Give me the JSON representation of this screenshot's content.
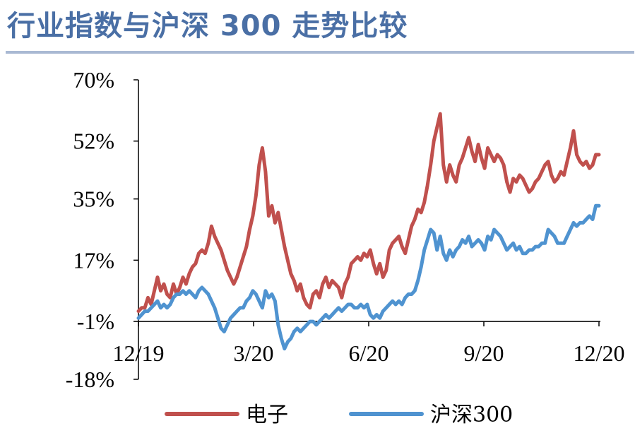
{
  "title": "行业指数与沪深 300 走势比较",
  "chart_data": {
    "type": "line",
    "title": "行业指数与沪深 300 走势比较",
    "xlabel": "",
    "ylabel": "",
    "ylim": [
      -18,
      70
    ],
    "yticks": [
      70,
      52,
      35,
      17,
      -1,
      -18
    ],
    "ytick_labels": [
      "70%",
      "52%",
      "35%",
      "17%",
      "-1%",
      "-18%"
    ],
    "xticks": [
      "12/19",
      "3/20",
      "6/20",
      "9/20",
      "12/20"
    ],
    "legend": "bottom",
    "grid": false,
    "colors": {
      "电子": "#c0504d",
      "沪深300": "#4f93d0"
    },
    "series": [
      {
        "name": "电子",
        "values": [
          [
            0,
            2
          ],
          [
            2,
            3
          ],
          [
            4,
            3
          ],
          [
            6,
            6
          ],
          [
            8,
            4
          ],
          [
            10,
            8
          ],
          [
            12,
            12
          ],
          [
            14,
            8
          ],
          [
            16,
            10
          ],
          [
            18,
            7
          ],
          [
            20,
            6
          ],
          [
            22,
            10
          ],
          [
            24,
            7
          ],
          [
            26,
            9
          ],
          [
            28,
            12
          ],
          [
            30,
            10
          ],
          [
            32,
            13
          ],
          [
            34,
            15
          ],
          [
            36,
            16
          ],
          [
            38,
            19
          ],
          [
            40,
            20
          ],
          [
            42,
            19
          ],
          [
            44,
            22
          ],
          [
            46,
            27
          ],
          [
            48,
            24
          ],
          [
            50,
            22
          ],
          [
            52,
            20
          ],
          [
            54,
            17
          ],
          [
            56,
            14
          ],
          [
            58,
            12
          ],
          [
            60,
            10
          ],
          [
            62,
            12
          ],
          [
            64,
            15
          ],
          [
            66,
            18
          ],
          [
            68,
            21
          ],
          [
            70,
            26
          ],
          [
            72,
            30
          ],
          [
            74,
            36
          ],
          [
            76,
            45
          ],
          [
            78,
            50
          ],
          [
            80,
            43
          ],
          [
            82,
            30
          ],
          [
            84,
            33
          ],
          [
            86,
            28
          ],
          [
            88,
            31
          ],
          [
            90,
            26
          ],
          [
            92,
            21
          ],
          [
            94,
            17
          ],
          [
            96,
            13
          ],
          [
            98,
            11
          ],
          [
            100,
            8
          ],
          [
            102,
            10
          ],
          [
            104,
            6
          ],
          [
            106,
            4
          ],
          [
            108,
            3
          ],
          [
            110,
            7
          ],
          [
            112,
            8
          ],
          [
            114,
            6
          ],
          [
            116,
            10
          ],
          [
            118,
            12
          ],
          [
            120,
            9
          ],
          [
            122,
            11
          ],
          [
            124,
            10
          ],
          [
            126,
            9
          ],
          [
            128,
            6
          ],
          [
            130,
            10
          ],
          [
            132,
            12
          ],
          [
            134,
            16
          ],
          [
            136,
            17
          ],
          [
            138,
            18
          ],
          [
            140,
            17
          ],
          [
            142,
            19
          ],
          [
            144,
            18
          ],
          [
            146,
            20
          ],
          [
            148,
            16
          ],
          [
            150,
            13
          ],
          [
            152,
            16
          ],
          [
            154,
            12
          ],
          [
            156,
            14
          ],
          [
            158,
            20
          ],
          [
            160,
            22
          ],
          [
            162,
            23
          ],
          [
            164,
            24
          ],
          [
            166,
            21
          ],
          [
            168,
            19
          ],
          [
            170,
            23
          ],
          [
            172,
            27
          ],
          [
            174,
            29
          ],
          [
            176,
            32
          ],
          [
            178,
            31
          ],
          [
            180,
            34
          ],
          [
            182,
            39
          ],
          [
            184,
            45
          ],
          [
            186,
            52
          ],
          [
            188,
            56
          ],
          [
            190,
            60
          ],
          [
            192,
            45
          ],
          [
            194,
            40
          ],
          [
            196,
            45
          ],
          [
            198,
            42
          ],
          [
            200,
            40
          ],
          [
            202,
            45
          ],
          [
            204,
            47
          ],
          [
            206,
            50
          ],
          [
            208,
            53
          ],
          [
            210,
            49
          ],
          [
            212,
            46
          ],
          [
            214,
            51
          ],
          [
            216,
            47
          ],
          [
            218,
            44
          ],
          [
            220,
            50
          ],
          [
            222,
            48
          ],
          [
            224,
            46
          ],
          [
            226,
            48
          ],
          [
            228,
            47
          ],
          [
            230,
            45
          ],
          [
            232,
            40
          ],
          [
            234,
            37
          ],
          [
            236,
            41
          ],
          [
            238,
            40
          ],
          [
            240,
            42
          ],
          [
            242,
            41
          ],
          [
            244,
            39
          ],
          [
            246,
            37
          ],
          [
            248,
            38
          ],
          [
            250,
            40
          ],
          [
            252,
            41
          ],
          [
            254,
            43
          ],
          [
            256,
            45
          ],
          [
            258,
            46
          ],
          [
            260,
            42
          ],
          [
            262,
            40
          ],
          [
            264,
            41
          ],
          [
            266,
            43
          ],
          [
            268,
            42
          ],
          [
            270,
            46
          ],
          [
            272,
            50
          ],
          [
            274,
            55
          ],
          [
            276,
            48
          ],
          [
            278,
            46
          ],
          [
            280,
            45
          ],
          [
            282,
            46
          ],
          [
            284,
            44
          ],
          [
            286,
            45
          ],
          [
            288,
            48
          ],
          [
            290,
            48
          ]
        ]
      },
      {
        "name": "沪深300",
        "values": [
          [
            0,
            0
          ],
          [
            2,
            1
          ],
          [
            4,
            2
          ],
          [
            6,
            2
          ],
          [
            8,
            3
          ],
          [
            10,
            4
          ],
          [
            12,
            5
          ],
          [
            14,
            3
          ],
          [
            16,
            4
          ],
          [
            18,
            3
          ],
          [
            20,
            4
          ],
          [
            22,
            6
          ],
          [
            24,
            7
          ],
          [
            26,
            7
          ],
          [
            28,
            8
          ],
          [
            30,
            7
          ],
          [
            32,
            8
          ],
          [
            34,
            7
          ],
          [
            36,
            6
          ],
          [
            38,
            8
          ],
          [
            40,
            9
          ],
          [
            42,
            8
          ],
          [
            44,
            7
          ],
          [
            46,
            5
          ],
          [
            48,
            3
          ],
          [
            50,
            0
          ],
          [
            52,
            -3
          ],
          [
            54,
            -4
          ],
          [
            56,
            -2
          ],
          [
            58,
            0
          ],
          [
            60,
            1
          ],
          [
            62,
            2
          ],
          [
            64,
            3
          ],
          [
            66,
            3
          ],
          [
            68,
            5
          ],
          [
            70,
            6
          ],
          [
            72,
            8
          ],
          [
            74,
            7
          ],
          [
            76,
            5
          ],
          [
            78,
            3
          ],
          [
            80,
            8
          ],
          [
            82,
            6
          ],
          [
            84,
            7
          ],
          [
            86,
            5
          ],
          [
            88,
            -2
          ],
          [
            90,
            -6
          ],
          [
            92,
            -9
          ],
          [
            94,
            -7
          ],
          [
            96,
            -6
          ],
          [
            98,
            -4
          ],
          [
            100,
            -3
          ],
          [
            102,
            -4
          ],
          [
            104,
            -3
          ],
          [
            106,
            -2
          ],
          [
            108,
            -1
          ],
          [
            110,
            -1
          ],
          [
            112,
            -2
          ],
          [
            114,
            -1
          ],
          [
            116,
            0
          ],
          [
            118,
            1
          ],
          [
            120,
            0
          ],
          [
            122,
            1
          ],
          [
            124,
            2
          ],
          [
            126,
            3
          ],
          [
            128,
            2
          ],
          [
            130,
            3
          ],
          [
            132,
            4
          ],
          [
            134,
            4
          ],
          [
            136,
            3
          ],
          [
            138,
            3
          ],
          [
            140,
            4
          ],
          [
            142,
            3
          ],
          [
            144,
            4
          ],
          [
            146,
            1
          ],
          [
            148,
            0
          ],
          [
            150,
            1
          ],
          [
            152,
            0
          ],
          [
            154,
            2
          ],
          [
            156,
            3
          ],
          [
            158,
            4
          ],
          [
            160,
            5
          ],
          [
            162,
            4
          ],
          [
            164,
            5
          ],
          [
            166,
            4
          ],
          [
            168,
            6
          ],
          [
            170,
            7
          ],
          [
            172,
            7
          ],
          [
            174,
            8
          ],
          [
            176,
            11
          ],
          [
            178,
            15
          ],
          [
            180,
            20
          ],
          [
            182,
            23
          ],
          [
            184,
            26
          ],
          [
            186,
            25
          ],
          [
            188,
            20
          ],
          [
            190,
            24
          ],
          [
            192,
            19
          ],
          [
            194,
            17
          ],
          [
            196,
            20
          ],
          [
            198,
            18
          ],
          [
            200,
            20
          ],
          [
            202,
            21
          ],
          [
            204,
            23
          ],
          [
            206,
            22
          ],
          [
            208,
            24
          ],
          [
            210,
            21
          ],
          [
            212,
            22
          ],
          [
            214,
            23
          ],
          [
            216,
            22
          ],
          [
            218,
            20
          ],
          [
            220,
            24
          ],
          [
            222,
            23
          ],
          [
            224,
            26
          ],
          [
            226,
            25
          ],
          [
            228,
            24
          ],
          [
            230,
            22
          ],
          [
            232,
            20
          ],
          [
            234,
            21
          ],
          [
            236,
            22
          ],
          [
            238,
            20
          ],
          [
            240,
            21
          ],
          [
            242,
            19
          ],
          [
            244,
            19
          ],
          [
            246,
            20
          ],
          [
            248,
            20
          ],
          [
            250,
            21
          ],
          [
            252,
            21
          ],
          [
            254,
            22
          ],
          [
            256,
            22
          ],
          [
            258,
            26
          ],
          [
            260,
            25
          ],
          [
            262,
            24
          ],
          [
            264,
            22
          ],
          [
            266,
            22
          ],
          [
            268,
            22
          ],
          [
            270,
            24
          ],
          [
            272,
            26
          ],
          [
            274,
            28
          ],
          [
            276,
            27
          ],
          [
            278,
            28
          ],
          [
            280,
            28
          ],
          [
            282,
            29
          ],
          [
            284,
            30
          ],
          [
            286,
            29
          ],
          [
            288,
            33
          ],
          [
            290,
            33
          ]
        ]
      }
    ]
  }
}
